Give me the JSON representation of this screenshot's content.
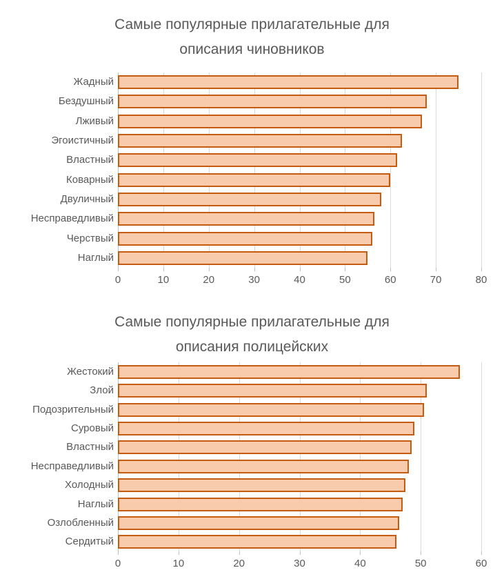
{
  "page": {
    "background": "#ffffff"
  },
  "colors": {
    "bar_fill": "#F8CBAD",
    "bar_border": "#C55A11",
    "gridline": "#D9D9D9",
    "axis_line": "#BFBFBF",
    "text": "#595959"
  },
  "chart_data": [
    {
      "type": "bar",
      "orientation": "horizontal",
      "title": "Самые популярные прилагательные для описания чиновников",
      "title_lines": [
        "Самые популярные прилагательные для",
        "описания чиновников"
      ],
      "categories": [
        "Жадный",
        "Бездушный",
        "Лживый",
        "Эгоистичный",
        "Властный",
        "Коварный",
        "Двуличный",
        "Несправедливый",
        "Черствый",
        "Наглый"
      ],
      "values": [
        75,
        68,
        67,
        62.5,
        61.5,
        60,
        58,
        56.5,
        56,
        55
      ],
      "xlabel": "",
      "ylabel": "",
      "xlim": [
        0,
        80
      ],
      "xticks": [
        0,
        10,
        20,
        30,
        40,
        50,
        60,
        70,
        80
      ],
      "grid": true,
      "legend": "none"
    },
    {
      "type": "bar",
      "orientation": "horizontal",
      "title": "Самые популярные прилагательные для описания полицейских",
      "title_lines": [
        "Самые популярные прилагательные для",
        "описания полицейских"
      ],
      "categories": [
        "Жестокий",
        "Злой",
        "Подозрительный",
        "Суровый",
        "Властный",
        "Несправедливый",
        "Холодный",
        "Наглый",
        "Озлобленный",
        "Сердитый"
      ],
      "values": [
        56.5,
        51,
        50.5,
        49,
        48.5,
        48,
        47.5,
        47,
        46.5,
        46
      ],
      "xlabel": "",
      "ylabel": "",
      "xlim": [
        0,
        60
      ],
      "xticks": [
        0,
        10,
        20,
        30,
        40,
        50,
        60
      ],
      "grid": true,
      "legend": "none"
    }
  ]
}
